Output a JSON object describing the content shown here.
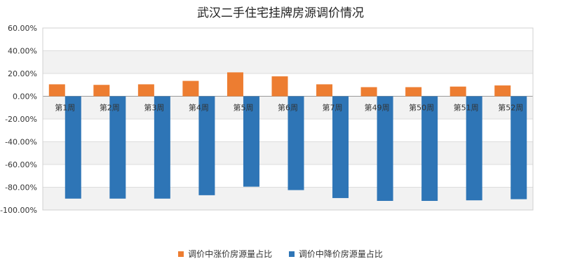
{
  "chart_data": {
    "type": "bar",
    "title": "武汉二手住宅挂牌房源调价情况",
    "categories": [
      "第1周",
      "第2周",
      "第3周",
      "第4周",
      "第5周",
      "第6周",
      "第7周",
      "第49周",
      "第50周",
      "第51周",
      "第52周"
    ],
    "series": [
      {
        "name": "调价中涨价房源量占比",
        "color": "#ED7D31",
        "values": [
          10.5,
          10.0,
          10.5,
          13.5,
          21.0,
          17.5,
          10.5,
          8.0,
          8.0,
          8.5,
          9.5
        ]
      },
      {
        "name": "调价中降价房源量占比",
        "color": "#2E75B6",
        "values": [
          -90.0,
          -90.0,
          -90.0,
          -87.0,
          -79.5,
          -82.5,
          -89.5,
          -92.0,
          -92.0,
          -91.5,
          -90.5
        ]
      }
    ],
    "ylim": [
      -100,
      60
    ],
    "y_ticks": [
      "60.00%",
      "40.00%",
      "20.00%",
      "0.00%",
      "-20.00%",
      "-40.00%",
      "-60.00%",
      "-80.00%",
      "-100.00%"
    ],
    "y_tick_values": [
      60,
      40,
      20,
      0,
      -20,
      -40,
      -60,
      -80,
      -100
    ],
    "grid": true,
    "legend_position": "bottom"
  }
}
